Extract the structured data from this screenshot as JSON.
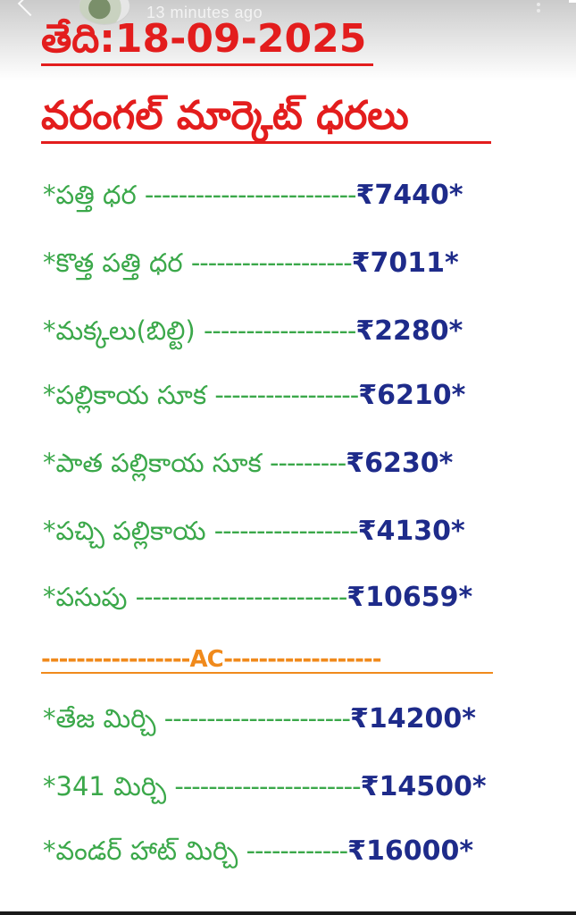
{
  "status": {
    "time_ago": "13 minutes ago"
  },
  "header": {
    "date_title": "తేది:18-09-2025",
    "market_title": "వరంగల్ మార్కెట్ ధరలు"
  },
  "prices": [
    {
      "name": "*పత్తి ధర ",
      "dashes": "-------------------------",
      "price": "₹7440*"
    },
    {
      "name": "*కొత్త పత్తి ధర ",
      "dashes": "-------------------",
      "price": "₹7011*"
    },
    {
      "name": "*మక్కలు(బిల్టి) ",
      "dashes": "------------------",
      "price": "₹2280*"
    },
    {
      "name": "*పల్లికాయ సూక ",
      "dashes": "-----------------",
      "price": "₹6210*"
    },
    {
      "name": "*పాత పల్లికాయ సూక ",
      "dashes": "---------",
      "price": "₹6230*"
    },
    {
      "name": "*పచ్చి పల్లికాయ ",
      "dashes": "-----------------",
      "price": "₹4130*"
    },
    {
      "name": "*పసుపు ",
      "dashes": "-------------------------",
      "price": "₹10659*"
    }
  ],
  "ac_divider": {
    "left": "-----------------",
    "label": "AC",
    "right": "------------------"
  },
  "ac_prices": [
    {
      "name": "*తేజ మిర్చి ",
      "dashes": "----------------------",
      "price": "₹14200*"
    },
    {
      "name": "*341 మిర్చి ",
      "dashes": "----------------------",
      "price": "₹14500*"
    },
    {
      "name": "*వండర్ హాట్ మిర్చి ",
      "dashes": "------------",
      "price": "₹16000*"
    }
  ],
  "colors": {
    "heading": "#e31d1d",
    "item": "#3ba84a",
    "price": "#1e2b8a",
    "ac": "#f08a1c"
  }
}
